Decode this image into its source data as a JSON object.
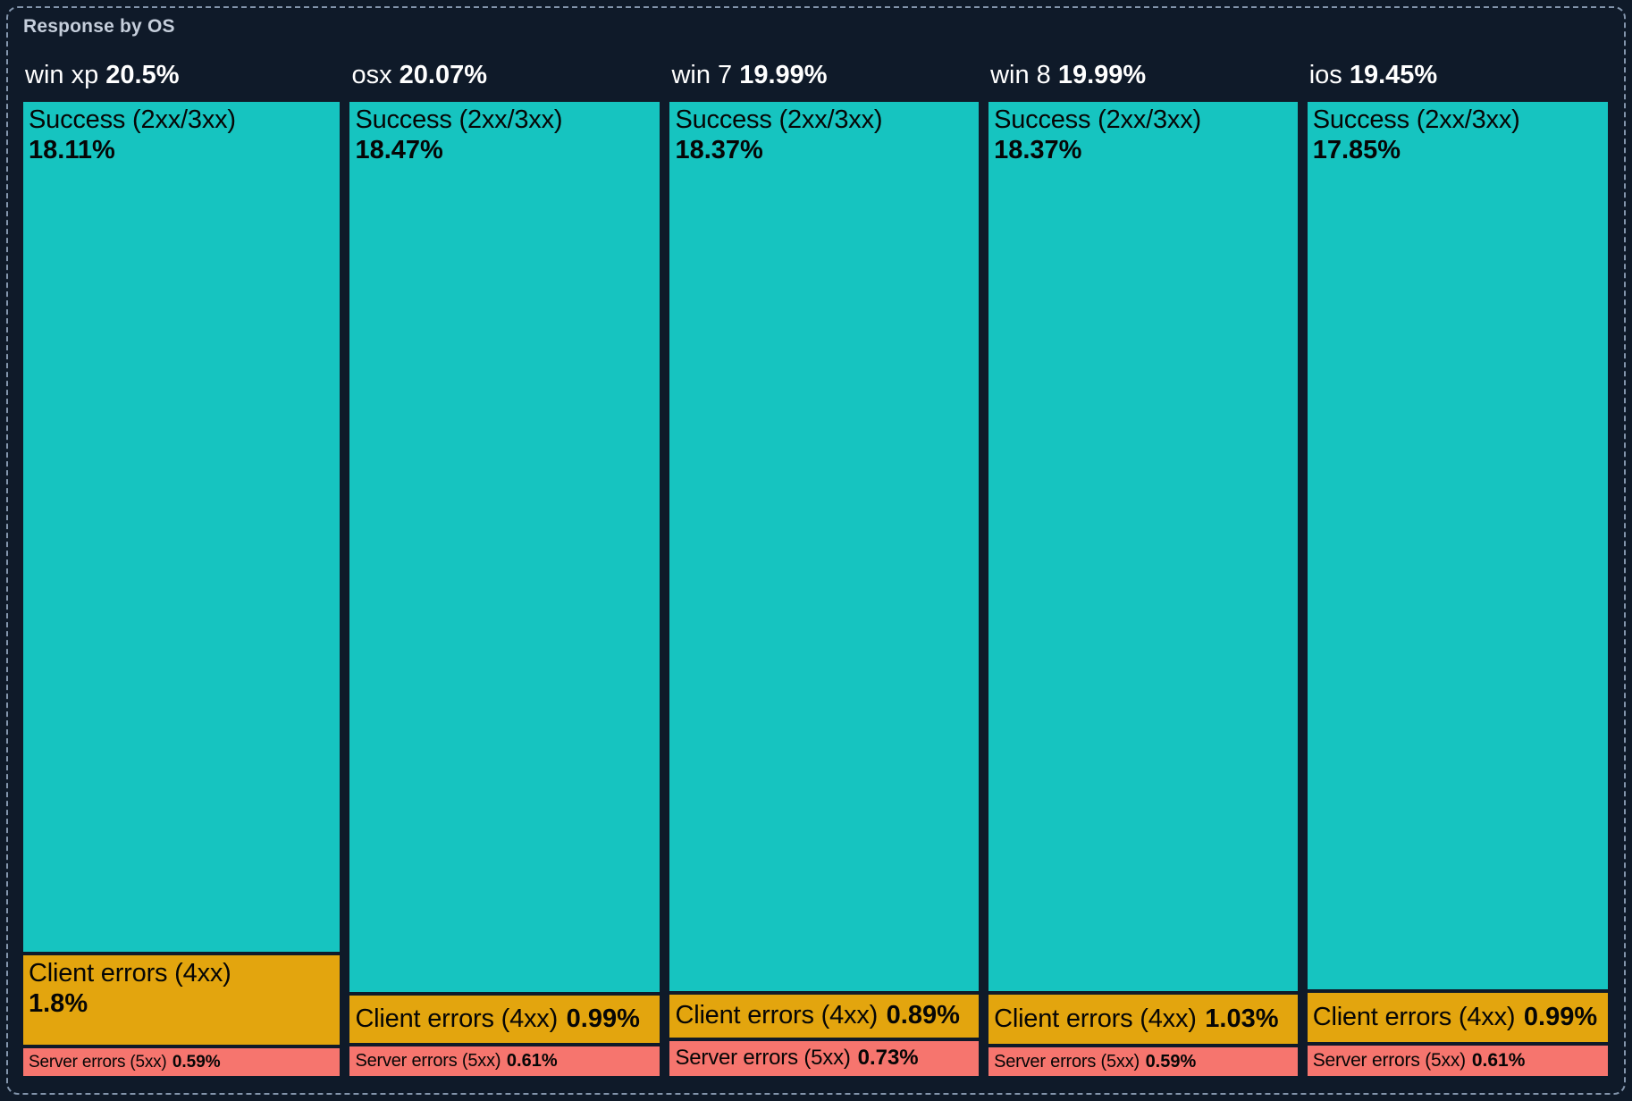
{
  "title": "Response by OS",
  "colors": {
    "background": "#0f1a29",
    "border_dashed": "#8395ac",
    "title_text": "#c5cedb",
    "header_text": "#ffffff",
    "segment_text": "#060606",
    "success": "#16c4c0",
    "client_error": "#e3a50e",
    "server_error": "#f6756e"
  },
  "chart_data": {
    "type": "treemap",
    "title": "Response by OS",
    "group_dimension": "OS",
    "value_unit": "%",
    "layout": "columns-proportional-width, stacked-proportional-height",
    "legend": "none",
    "groups": [
      {
        "name": "win xp",
        "total": 20.5,
        "total_label": "20.5%",
        "children": [
          {
            "label": "Success (2xx/3xx)",
            "value": 18.11,
            "value_label": "18.11%",
            "category": "success"
          },
          {
            "label": "Client errors (4xx)",
            "value": 1.8,
            "value_label": "1.8%",
            "category": "client_error"
          },
          {
            "label": "Server errors (5xx)",
            "value": 0.59,
            "value_label": "0.59%",
            "category": "server_error"
          }
        ]
      },
      {
        "name": "osx",
        "total": 20.07,
        "total_label": "20.07%",
        "children": [
          {
            "label": "Success (2xx/3xx)",
            "value": 18.47,
            "value_label": "18.47%",
            "category": "success"
          },
          {
            "label": "Client errors (4xx)",
            "value": 0.99,
            "value_label": "0.99%",
            "category": "client_error"
          },
          {
            "label": "Server errors (5xx)",
            "value": 0.61,
            "value_label": "0.61%",
            "category": "server_error"
          }
        ]
      },
      {
        "name": "win 7",
        "total": 19.99,
        "total_label": "19.99%",
        "children": [
          {
            "label": "Success (2xx/3xx)",
            "value": 18.37,
            "value_label": "18.37%",
            "category": "success"
          },
          {
            "label": "Client errors (4xx)",
            "value": 0.89,
            "value_label": "0.89%",
            "category": "client_error"
          },
          {
            "label": "Server errors (5xx)",
            "value": 0.73,
            "value_label": "0.73%",
            "category": "server_error"
          }
        ]
      },
      {
        "name": "win 8",
        "total": 19.99,
        "total_label": "19.99%",
        "children": [
          {
            "label": "Success (2xx/3xx)",
            "value": 18.37,
            "value_label": "18.37%",
            "category": "success"
          },
          {
            "label": "Client errors (4xx)",
            "value": 1.03,
            "value_label": "1.03%",
            "category": "client_error"
          },
          {
            "label": "Server errors (5xx)",
            "value": 0.59,
            "value_label": "0.59%",
            "category": "server_error"
          }
        ]
      },
      {
        "name": "ios",
        "total": 19.45,
        "total_label": "19.45%",
        "children": [
          {
            "label": "Success (2xx/3xx)",
            "value": 17.85,
            "value_label": "17.85%",
            "category": "success"
          },
          {
            "label": "Client errors (4xx)",
            "value": 0.99,
            "value_label": "0.99%",
            "category": "client_error"
          },
          {
            "label": "Server errors (5xx)",
            "value": 0.61,
            "value_label": "0.61%",
            "category": "server_error"
          }
        ]
      }
    ]
  }
}
